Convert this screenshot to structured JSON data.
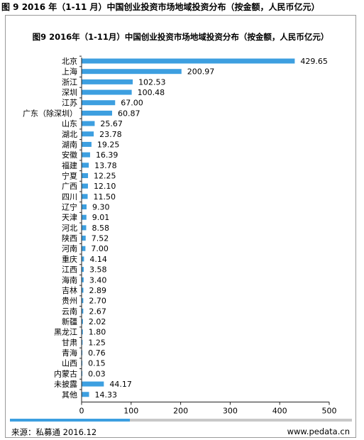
{
  "header": {
    "outer_title": "图 9 2016 年（1-11 月）中国创业投资市场地域投资分布（按金额，人民币亿元）"
  },
  "chart_data": {
    "type": "bar",
    "orientation": "horizontal",
    "title": "图9 2016年（1-11月）中国创业投资市场地域投资分布（按金额，人民币亿元）",
    "categories": [
      "北京",
      "上海",
      "浙江",
      "深圳",
      "江苏",
      "广东（除深圳）",
      "山东",
      "湖北",
      "湖南",
      "安徽",
      "福建",
      "宁夏",
      "广西",
      "四川",
      "辽宁",
      "天津",
      "河北",
      "陕西",
      "河南",
      "重庆",
      "江西",
      "海南",
      "吉林",
      "贵州",
      "云南",
      "新疆",
      "黑龙江",
      "甘肃",
      "青海",
      "山西",
      "内蒙古",
      "未披露",
      "其他"
    ],
    "values": [
      429.65,
      200.97,
      102.53,
      100.48,
      67.0,
      60.87,
      25.67,
      23.78,
      19.25,
      16.39,
      13.78,
      12.25,
      12.1,
      11.5,
      9.3,
      9.01,
      8.58,
      7.52,
      7.0,
      4.14,
      3.58,
      3.4,
      2.89,
      2.7,
      2.67,
      2.02,
      1.8,
      1.25,
      0.76,
      0.15,
      0.03,
      44.17,
      14.33
    ],
    "value_labels": [
      "429.65",
      "200.97",
      "102.53",
      "100.48",
      "67.00",
      "60.87",
      "25.67",
      "23.78",
      "19.25",
      "16.39",
      "13.78",
      "12.25",
      "12.10",
      "11.50",
      "9.30",
      "9.01",
      "8.58",
      "7.52",
      "7.00",
      "4.14",
      "3.58",
      "3.40",
      "2.89",
      "2.70",
      "2.67",
      "2.02",
      "1.80",
      "1.25",
      "0.76",
      "0.15",
      "0.03",
      "44.17",
      "14.33"
    ],
    "xlim": [
      0,
      500
    ],
    "x_ticks": [
      "0",
      "100",
      "200",
      "300",
      "400",
      "500"
    ],
    "bar_color": "#3d9fe0",
    "grid": false
  },
  "scroll": {
    "fill_fraction": 0.35,
    "fill_color": "#3d9fe0",
    "track_color": "#c8c8c8"
  },
  "footer": {
    "source": "来源：私募通 2016.12",
    "site": "www.pedata.cn"
  }
}
